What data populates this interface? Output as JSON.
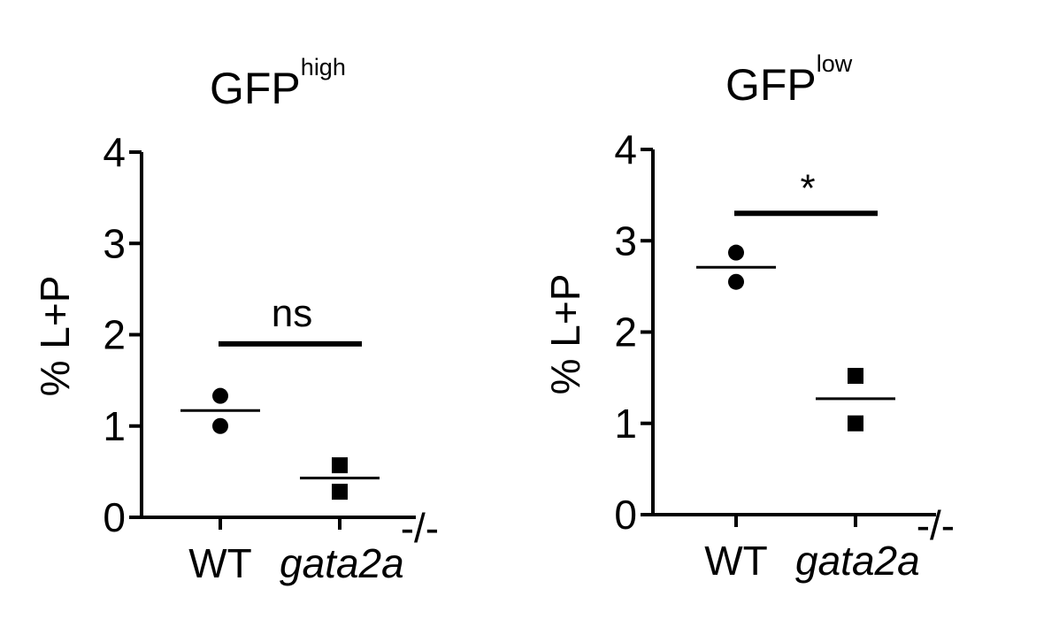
{
  "chart_data": [
    {
      "type": "scatter",
      "title": {
        "base": "GFP",
        "sup": "high"
      },
      "ylabel": "% L+P",
      "ylim": [
        0,
        4
      ],
      "yticks": [
        "0",
        "1",
        "2",
        "3",
        "4"
      ],
      "categories": [
        {
          "label": "WT",
          "italic": "",
          "sup": ""
        },
        {
          "label": "",
          "italic": "gata2a",
          "sup": "-/-"
        }
      ],
      "series": [
        {
          "marker": "circle",
          "category": 0,
          "values": [
            1.33,
            1.0
          ],
          "mean": 1.17
        },
        {
          "marker": "square",
          "category": 1,
          "values": [
            0.57,
            0.28
          ],
          "mean": 0.43
        }
      ],
      "significance": {
        "label": "ns",
        "y": 1.9,
        "from": 0,
        "to": 1
      }
    },
    {
      "type": "scatter",
      "title": {
        "base": "GFP",
        "sup": "low"
      },
      "ylabel": "% L+P",
      "ylim": [
        0,
        4
      ],
      "yticks": [
        "0",
        "1",
        "2",
        "3",
        "4"
      ],
      "categories": [
        {
          "label": "WT",
          "italic": "",
          "sup": ""
        },
        {
          "label": "",
          "italic": "gata2a",
          "sup": "-/-"
        }
      ],
      "series": [
        {
          "marker": "circle",
          "category": 0,
          "values": [
            2.87,
            2.55
          ],
          "mean": 2.71
        },
        {
          "marker": "square",
          "category": 1,
          "values": [
            1.52,
            1.0
          ],
          "mean": 1.27
        }
      ],
      "significance": {
        "label": "*",
        "y": 3.3,
        "from": 0,
        "to": 1
      }
    }
  ]
}
